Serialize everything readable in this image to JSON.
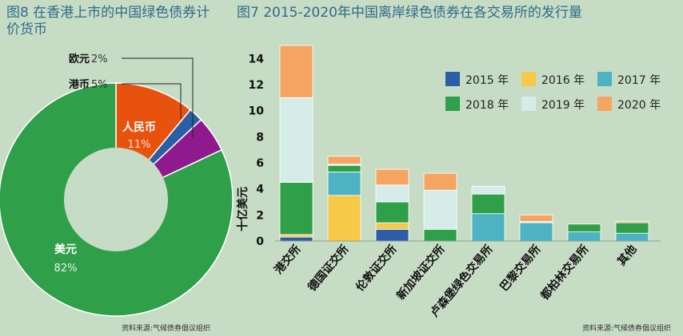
{
  "left_title": "图8 在香港上市的中国绿色债券计价货币",
  "right_title": "图7 2015-2020年中国离岸绿色债券在各交易所的发行量",
  "left_source": "资料来源:气候债券倡议组织",
  "right_source": "资料来源:气候债券倡议组织",
  "chart_data": [
    {
      "type": "pie",
      "title": "图8 在香港上市的中国绿色债券计价货币",
      "slices": [
        {
          "name": "人民币",
          "pct_label": "11%",
          "value": 11,
          "color": "#e8520f"
        },
        {
          "name": "欧元",
          "pct_label": "2%",
          "value": 2,
          "color": "#2a5fa3"
        },
        {
          "name": "港币",
          "pct_label": "5%",
          "value": 5,
          "color": "#8e1a8e"
        },
        {
          "name": "美元",
          "pct_label": "82%",
          "value": 82,
          "color": "#2f9f4a"
        }
      ],
      "center_color": "#c6dcc6"
    },
    {
      "type": "bar",
      "stacked": true,
      "title": "图7 2015-2020年中国离岸绿色债券在各交易所的发行量",
      "ylabel": "十亿美元",
      "ylim": [
        0,
        15
      ],
      "yticks": [
        0,
        2,
        4,
        6,
        8,
        10,
        12,
        14
      ],
      "categories": [
        "港交所",
        "德国证交所",
        "伦敦证交所",
        "新加坡证交所",
        "卢森堡绿色交易所",
        "巴黎交易所",
        "都柏林交易所",
        "其他"
      ],
      "legend_position": "top-right",
      "series": [
        {
          "name": "2015 年",
          "color": "#2d5da8",
          "values": [
            0.3,
            0,
            0.9,
            0,
            0,
            0,
            0,
            0
          ]
        },
        {
          "name": "2016 年",
          "color": "#f7c948",
          "values": [
            0.2,
            3.5,
            0.5,
            0,
            0,
            0,
            0,
            0
          ]
        },
        {
          "name": "2017 年",
          "color": "#4db3c2",
          "values": [
            0,
            1.8,
            0,
            0,
            2.1,
            1.4,
            0.7,
            0.6
          ]
        },
        {
          "name": "2018 年",
          "color": "#2f9f4a",
          "values": [
            4.0,
            0.5,
            1.6,
            0.9,
            1.5,
            0,
            0.6,
            0.8
          ]
        },
        {
          "name": "2019 年",
          "color": "#d6ece8",
          "values": [
            6.5,
            0.1,
            1.3,
            3.0,
            0.6,
            0.1,
            0,
            0
          ]
        },
        {
          "name": "2020 年",
          "color": "#f6a461",
          "values": [
            4.0,
            0.6,
            1.2,
            1.3,
            0,
            0.5,
            0,
            0.1
          ]
        }
      ]
    }
  ]
}
